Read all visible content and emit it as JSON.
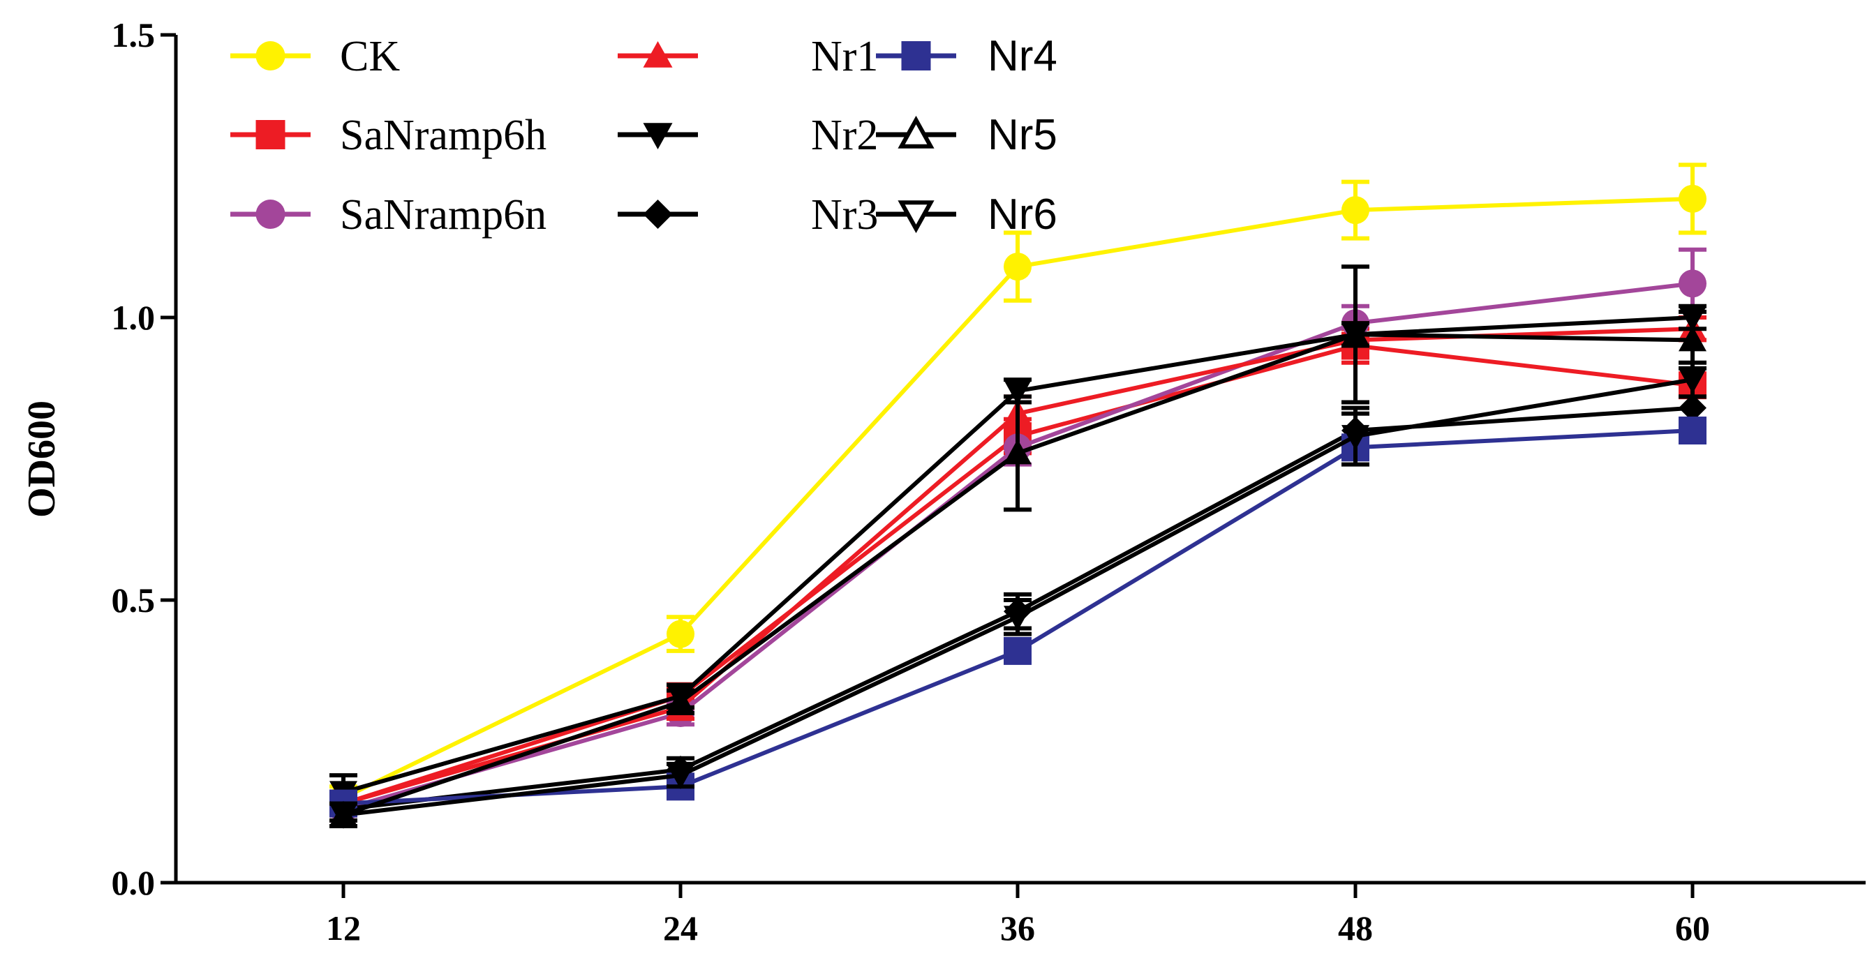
{
  "chart_data": {
    "type": "line",
    "title": "",
    "xlabel": "",
    "ylabel": "OD600",
    "x": [
      12,
      24,
      36,
      48,
      60
    ],
    "x_tick_labels": [
      "12",
      "24",
      "36",
      "48",
      "60"
    ],
    "ylim": [
      0,
      1.5
    ],
    "y_ticks": [
      0.0,
      0.5,
      1.0,
      1.5
    ],
    "y_tick_labels": [
      "0.0",
      "0.5",
      "1.0",
      "1.5"
    ],
    "grid": false,
    "legend_position": "top-left",
    "series": [
      {
        "name": "CK",
        "color": "#FFF200",
        "marker": "circle",
        "values": [
          0.15,
          0.44,
          1.09,
          1.19,
          1.21
        ],
        "errors": [
          0.02,
          0.03,
          0.06,
          0.05,
          0.06
        ]
      },
      {
        "name": "SaNramp6h",
        "color": "#ED1C24",
        "marker": "square",
        "values": [
          0.14,
          0.33,
          0.79,
          0.95,
          0.88
        ],
        "errors": [
          0.02,
          0.02,
          0.03,
          0.03,
          0.02
        ]
      },
      {
        "name": "SaNramp6n",
        "color": "#A3469A",
        "marker": "circle",
        "values": [
          0.13,
          0.3,
          0.77,
          0.99,
          1.06
        ],
        "errors": [
          0.02,
          0.02,
          0.03,
          0.03,
          0.06
        ]
      },
      {
        "name": "Nr1",
        "color": "#ED1C24",
        "marker": "triangle-up",
        "values": [
          0.14,
          0.31,
          0.83,
          0.96,
          0.98
        ],
        "errors": [
          0.02,
          0.02,
          0.03,
          0.03,
          0.02
        ]
      },
      {
        "name": "Nr2",
        "color": "#000000",
        "marker": "triangle-down",
        "values": [
          0.16,
          0.33,
          0.87,
          0.97,
          1.0
        ],
        "errors": [
          0.03,
          0.02,
          0.02,
          0.02,
          0.02
        ]
      },
      {
        "name": "Nr3",
        "color": "#000000",
        "marker": "diamond",
        "values": [
          0.13,
          0.2,
          0.48,
          0.8,
          0.84
        ],
        "errors": [
          0.02,
          0.02,
          0.03,
          0.03,
          0.02
        ]
      },
      {
        "name": "Nr4",
        "color": "#2E3192",
        "marker": "square",
        "values": [
          0.14,
          0.17,
          0.41,
          0.77,
          0.8
        ],
        "errors": [
          0.02,
          0.02,
          0.02,
          0.02,
          0.02
        ]
      },
      {
        "name": "Nr5",
        "color": "#000000",
        "marker": "triangle-up",
        "values": [
          0.12,
          0.32,
          0.76,
          0.97,
          0.96
        ],
        "errors": [
          0.02,
          0.02,
          0.1,
          0.12,
          0.05
        ]
      },
      {
        "name": "Nr6",
        "color": "#000000",
        "marker": "triangle-down",
        "values": [
          0.12,
          0.19,
          0.47,
          0.79,
          0.89
        ],
        "errors": [
          0.02,
          0.02,
          0.03,
          0.05,
          0.03
        ]
      }
    ]
  }
}
